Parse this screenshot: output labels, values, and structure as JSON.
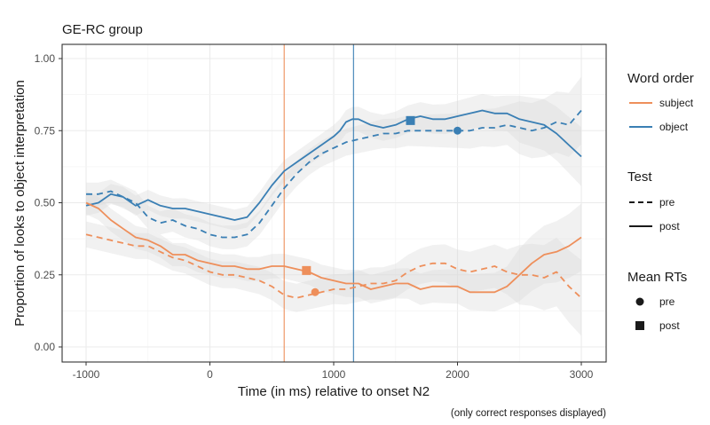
{
  "chart_data": {
    "type": "line",
    "title": "GE-RC group",
    "xlabel": "Time (in ms) relative to onset N2",
    "ylabel": "Proportion of looks to object interpretation",
    "caption": "(only correct responses displayed)",
    "xlim": [
      -1000,
      3000
    ],
    "ylim": [
      0,
      1
    ],
    "x_ticks": [
      -1000,
      0,
      1000,
      2000,
      3000
    ],
    "x_tick_labels": [
      "-1000",
      "0",
      "1000",
      "2000",
      "3000"
    ],
    "y_ticks": [
      0,
      0.25,
      0.5,
      0.75,
      1
    ],
    "y_tick_labels": [
      "0.00",
      "0.25",
      "0.50",
      "0.75",
      "1.00"
    ],
    "grid": true,
    "colors": {
      "subject": "#ee8f5b",
      "object": "#3a7fb4",
      "ribbon": "#e6e6e6",
      "grid": "#ebebeb"
    },
    "vlines": [
      {
        "name": "subject",
        "x": 600,
        "color": "#ee8f5b"
      },
      {
        "name": "object",
        "x": 1160,
        "color": "#3a7fb4"
      }
    ],
    "series": [
      {
        "name": "object-post",
        "order": "object",
        "test": "post",
        "x": [
          -1000,
          -900,
          -800,
          -700,
          -600,
          -500,
          -400,
          -300,
          -200,
          -100,
          0,
          100,
          200,
          300,
          400,
          500,
          600,
          700,
          800,
          900,
          1000,
          1050,
          1100,
          1150,
          1200,
          1300,
          1400,
          1500,
          1600,
          1700,
          1800,
          1900,
          2000,
          2100,
          2200,
          2300,
          2400,
          2500,
          2600,
          2700,
          2800,
          2900,
          3000
        ],
        "y": [
          0.49,
          0.5,
          0.53,
          0.52,
          0.49,
          0.51,
          0.49,
          0.48,
          0.48,
          0.47,
          0.46,
          0.45,
          0.44,
          0.45,
          0.5,
          0.56,
          0.61,
          0.64,
          0.67,
          0.7,
          0.73,
          0.75,
          0.78,
          0.79,
          0.79,
          0.77,
          0.76,
          0.77,
          0.79,
          0.8,
          0.79,
          0.79,
          0.8,
          0.81,
          0.82,
          0.81,
          0.81,
          0.79,
          0.78,
          0.77,
          0.74,
          0.7,
          0.66
        ],
        "band": 0.035
      },
      {
        "name": "object-pre",
        "order": "object",
        "test": "pre",
        "x": [
          -1000,
          -900,
          -800,
          -700,
          -600,
          -500,
          -400,
          -300,
          -200,
          -100,
          0,
          100,
          200,
          300,
          400,
          500,
          600,
          700,
          800,
          900,
          1000,
          1100,
          1200,
          1300,
          1400,
          1500,
          1600,
          1700,
          1800,
          1900,
          2000,
          2100,
          2200,
          2300,
          2400,
          2500,
          2600,
          2700,
          2800,
          2900,
          3000
        ],
        "y": [
          0.53,
          0.53,
          0.54,
          0.52,
          0.5,
          0.45,
          0.43,
          0.44,
          0.42,
          0.41,
          0.39,
          0.38,
          0.38,
          0.39,
          0.43,
          0.49,
          0.55,
          0.6,
          0.64,
          0.67,
          0.69,
          0.71,
          0.72,
          0.73,
          0.74,
          0.74,
          0.75,
          0.75,
          0.75,
          0.75,
          0.75,
          0.75,
          0.76,
          0.76,
          0.77,
          0.76,
          0.75,
          0.76,
          0.78,
          0.77,
          0.82
        ],
        "band": 0.04
      },
      {
        "name": "subject-post",
        "order": "subject",
        "test": "post",
        "x": [
          -1000,
          -900,
          -800,
          -700,
          -600,
          -500,
          -400,
          -300,
          -200,
          -100,
          0,
          100,
          200,
          300,
          400,
          500,
          600,
          700,
          800,
          900,
          1000,
          1100,
          1200,
          1300,
          1400,
          1500,
          1600,
          1700,
          1800,
          1900,
          2000,
          2100,
          2200,
          2300,
          2400,
          2500,
          2600,
          2700,
          2800,
          2900,
          3000
        ],
        "y": [
          0.5,
          0.48,
          0.44,
          0.41,
          0.38,
          0.37,
          0.35,
          0.32,
          0.32,
          0.3,
          0.29,
          0.28,
          0.28,
          0.27,
          0.27,
          0.28,
          0.28,
          0.27,
          0.26,
          0.24,
          0.23,
          0.22,
          0.22,
          0.2,
          0.21,
          0.22,
          0.22,
          0.2,
          0.21,
          0.21,
          0.21,
          0.19,
          0.19,
          0.19,
          0.21,
          0.25,
          0.29,
          0.32,
          0.33,
          0.35,
          0.38
        ],
        "band": 0.04
      },
      {
        "name": "subject-pre",
        "order": "subject",
        "test": "pre",
        "x": [
          -1000,
          -900,
          -800,
          -700,
          -600,
          -500,
          -400,
          -300,
          -200,
          -100,
          0,
          100,
          200,
          300,
          400,
          500,
          600,
          700,
          800,
          900,
          1000,
          1100,
          1200,
          1300,
          1400,
          1500,
          1600,
          1700,
          1800,
          1900,
          2000,
          2100,
          2200,
          2300,
          2400,
          2500,
          2600,
          2700,
          2800,
          2900,
          3000
        ],
        "y": [
          0.39,
          0.38,
          0.37,
          0.36,
          0.35,
          0.35,
          0.33,
          0.31,
          0.3,
          0.28,
          0.26,
          0.25,
          0.25,
          0.24,
          0.23,
          0.21,
          0.18,
          0.17,
          0.18,
          0.19,
          0.2,
          0.2,
          0.21,
          0.22,
          0.22,
          0.23,
          0.26,
          0.28,
          0.29,
          0.29,
          0.27,
          0.26,
          0.27,
          0.28,
          0.26,
          0.25,
          0.25,
          0.24,
          0.26,
          0.21,
          0.17
        ],
        "band": 0.045
      }
    ],
    "mean_rts": [
      {
        "order": "object",
        "test": "post",
        "shape": "square",
        "x": 1620,
        "y": 0.785
      },
      {
        "order": "object",
        "test": "pre",
        "shape": "circle",
        "x": 2000,
        "y": 0.75
      },
      {
        "order": "subject",
        "test": "post",
        "shape": "square",
        "x": 780,
        "y": 0.265
      },
      {
        "order": "subject",
        "test": "pre",
        "shape": "circle",
        "x": 850,
        "y": 0.19
      }
    ],
    "legend": {
      "word_order": {
        "title": "Word order",
        "items": [
          "subject",
          "object"
        ]
      },
      "test": {
        "title": "Test",
        "items": [
          "pre",
          "post"
        ]
      },
      "mean_rts": {
        "title": "Mean RTs",
        "items": [
          "pre",
          "post"
        ]
      }
    }
  }
}
